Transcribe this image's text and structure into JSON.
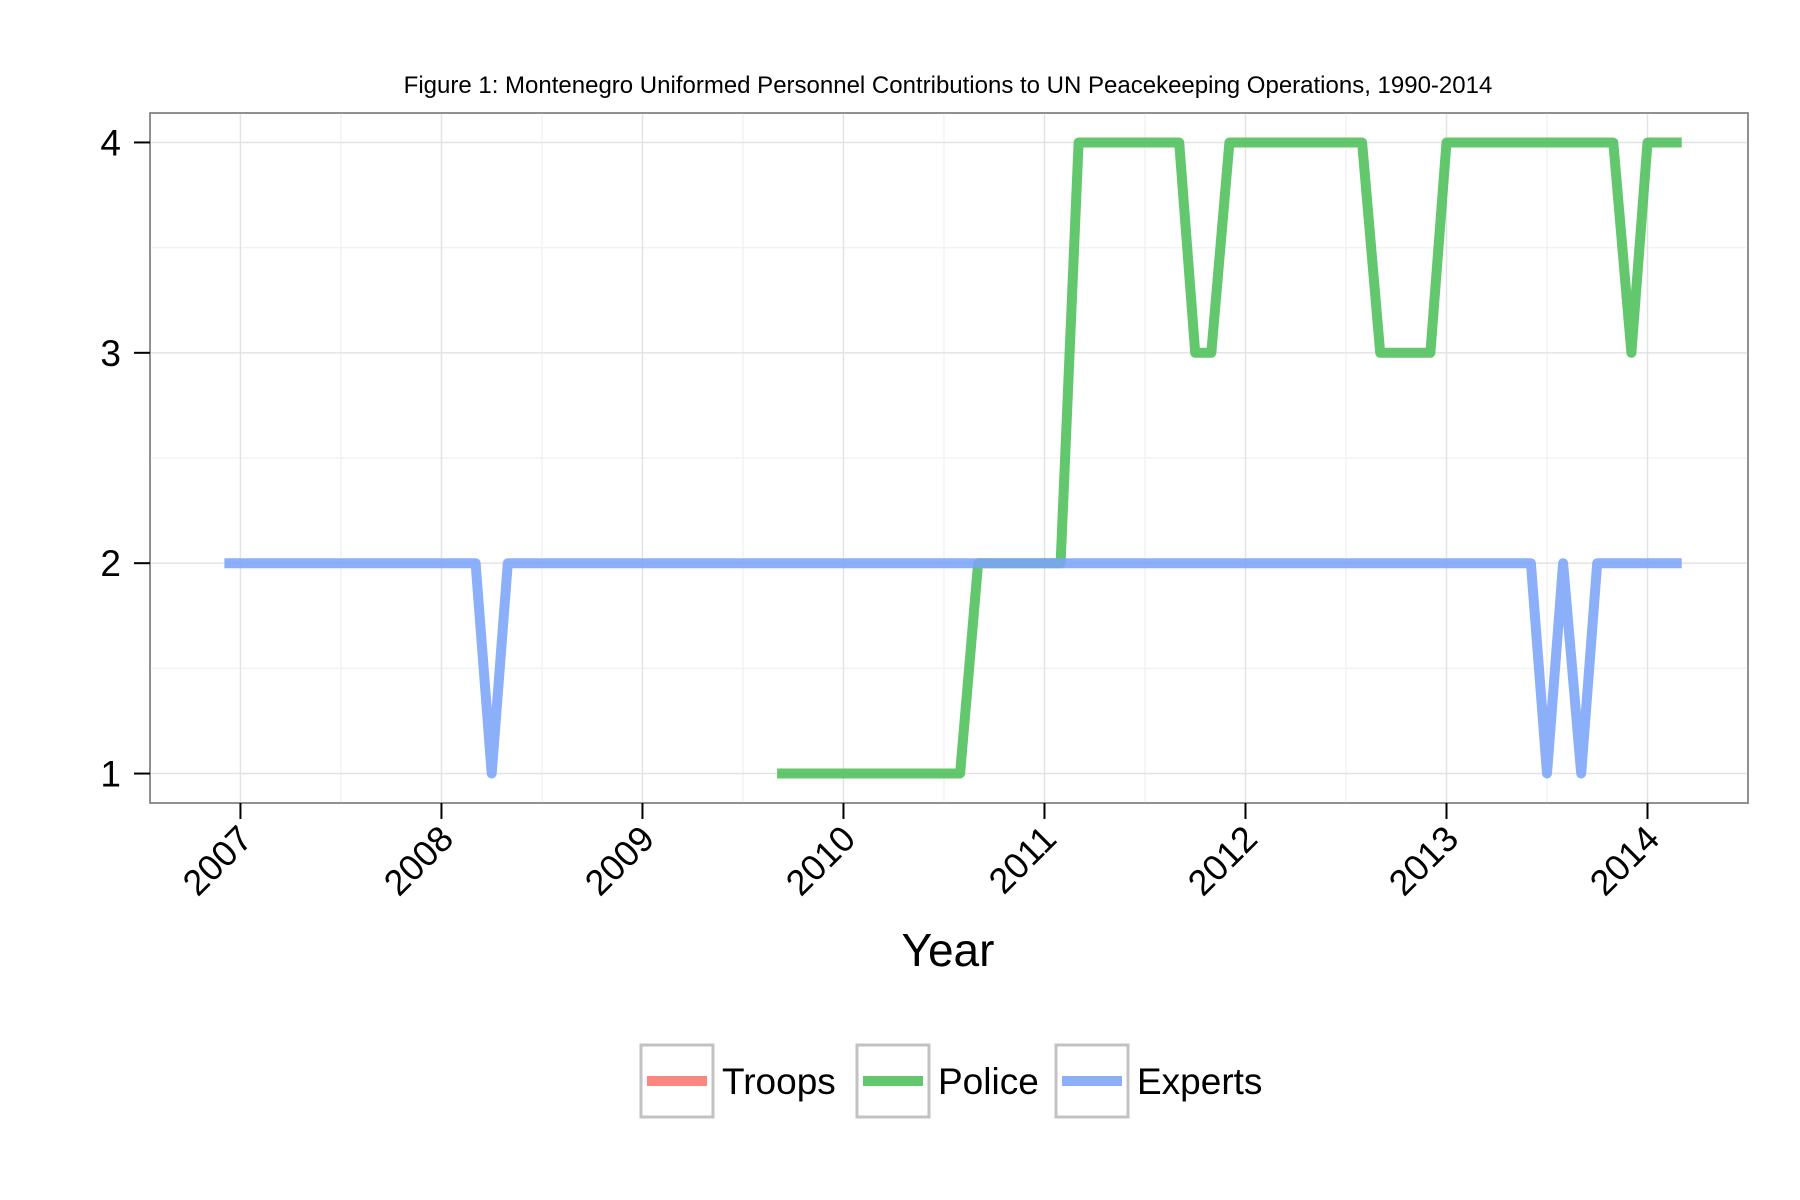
{
  "chart_data": {
    "type": "line",
    "title": "Figure 1: Montenegro Uniformed Personnel Contributions to UN Peacekeeping Operations, 1990-2014",
    "xlabel": "Year",
    "ylabel": "",
    "xlim": [
      2006.55,
      2014.5
    ],
    "ylim": [
      0.86,
      4.14
    ],
    "x_ticks": [
      2007,
      2008,
      2009,
      2010,
      2011,
      2012,
      2013,
      2014
    ],
    "x_tick_labels": [
      "2007",
      "2008",
      "2009",
      "2010",
      "2011",
      "2012",
      "2013",
      "2014"
    ],
    "y_ticks": [
      1,
      2,
      3,
      4
    ],
    "y_tick_labels": [
      "1",
      "2",
      "3",
      "4"
    ],
    "grid": true,
    "legend_position": "bottom",
    "series": [
      {
        "name": "Troops",
        "color": "#F8766D",
        "x": [],
        "y": []
      },
      {
        "name": "Police",
        "color": "#4DBF5A",
        "x": [
          2009.67,
          2010.58,
          2010.67,
          2011.08,
          2011.17,
          2011.67,
          2011.75,
          2011.83,
          2011.92,
          2012.58,
          2012.67,
          2012.92,
          2013.0,
          2013.83,
          2013.92,
          2014.0,
          2014.17
        ],
        "y": [
          1,
          1,
          2,
          2,
          4,
          4,
          3,
          3,
          4,
          4,
          3,
          3,
          4,
          4,
          3,
          4,
          4
        ]
      },
      {
        "name": "Experts",
        "color": "#7CA4F8",
        "x": [
          2006.92,
          2008.17,
          2008.25,
          2008.33,
          2013.42,
          2013.5,
          2013.58,
          2013.67,
          2013.75,
          2014.17
        ],
        "y": [
          2,
          2,
          1,
          2,
          2,
          1,
          2,
          1,
          2,
          2
        ]
      }
    ]
  }
}
